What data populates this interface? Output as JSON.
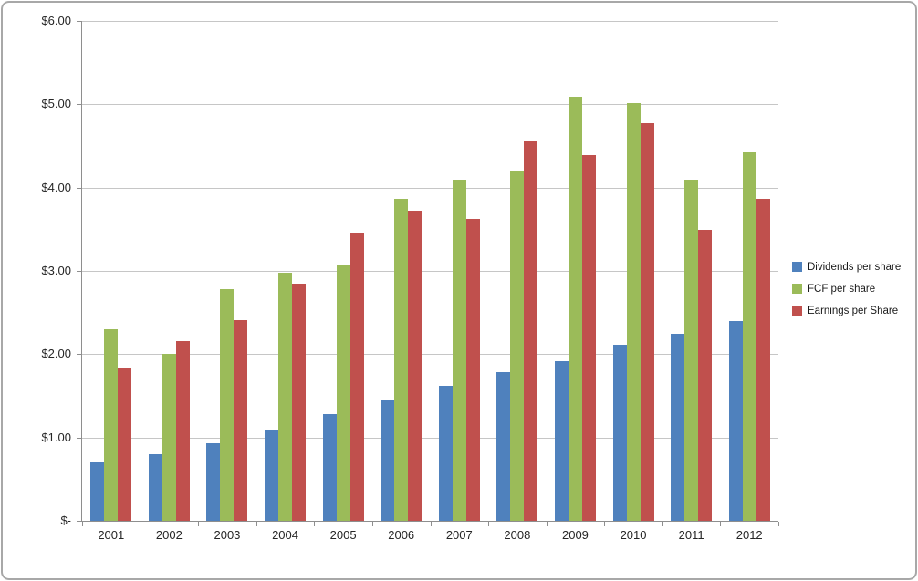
{
  "chart_data": {
    "type": "bar",
    "title": "",
    "xlabel": "",
    "ylabel": "",
    "categories": [
      "2001",
      "2002",
      "2003",
      "2004",
      "2005",
      "2006",
      "2007",
      "2008",
      "2009",
      "2010",
      "2011",
      "2012"
    ],
    "series": [
      {
        "name": "Dividends per share",
        "color": "#4F81BD",
        "values": [
          0.7,
          0.8,
          0.93,
          1.1,
          1.28,
          1.45,
          1.62,
          1.79,
          1.92,
          2.11,
          2.25,
          2.4
        ]
      },
      {
        "name": "FCF per share",
        "color": "#9BBB59",
        "values": [
          2.3,
          2.0,
          2.78,
          2.98,
          3.07,
          3.87,
          4.09,
          4.19,
          5.09,
          5.01,
          4.1,
          4.42
        ]
      },
      {
        "name": "Earnings per Share",
        "color": "#C0504D",
        "values": [
          1.84,
          2.16,
          2.41,
          2.85,
          3.46,
          3.72,
          3.62,
          4.56,
          4.39,
          4.77,
          3.49,
          3.86
        ]
      }
    ],
    "ylim": [
      0,
      6
    ],
    "y_tick_step": 1,
    "y_tick_labels": [
      "$-",
      "$1.00",
      "$2.00",
      "$3.00",
      "$4.00",
      "$5.00",
      "$6.00"
    ],
    "grid": true,
    "legend_position": "right",
    "colors": {
      "gridline": "#c6c6c6",
      "axis": "#8e8e8e",
      "text": "#262626"
    }
  }
}
